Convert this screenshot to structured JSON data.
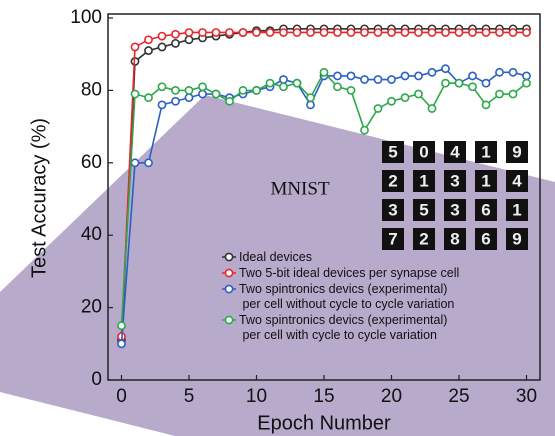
{
  "chart_data": {
    "type": "line",
    "xlabel": "Epoch Number",
    "ylabel": "Test Accuracy (%)",
    "annotation": "MNIST",
    "digits": [
      [
        "5",
        "0",
        "4",
        "1",
        "9"
      ],
      [
        "2",
        "1",
        "3",
        "1",
        "4"
      ],
      [
        "3",
        "5",
        "3",
        "6",
        "1"
      ],
      [
        "7",
        "2",
        "8",
        "6",
        "9"
      ]
    ],
    "x": [
      0,
      1,
      2,
      3,
      4,
      5,
      6,
      7,
      8,
      9,
      10,
      11,
      12,
      13,
      14,
      15,
      16,
      17,
      18,
      19,
      20,
      21,
      22,
      23,
      24,
      25,
      26,
      27,
      28,
      29,
      30
    ],
    "xlim": [
      -1,
      31
    ],
    "xticks": [
      0,
      5,
      10,
      15,
      20,
      25,
      30
    ],
    "ylim": [
      0,
      100
    ],
    "yticks": [
      0,
      20,
      40,
      60,
      80,
      100
    ],
    "series": [
      {
        "name": "Ideal devices",
        "color": "#333333",
        "values": [
          11,
          88,
          91,
          92,
          93,
          94,
          94.5,
          95,
          95.5,
          96,
          96.5,
          96.5,
          97,
          97,
          97,
          97,
          97,
          97,
          97,
          97,
          97,
          97,
          97,
          97,
          97,
          97,
          97,
          97,
          97,
          97,
          97
        ]
      },
      {
        "name": "Two 5-bit ideal devices per synapse cell",
        "color": "#e8262b",
        "values": [
          12,
          92,
          94,
          95,
          95.5,
          96,
          96,
          96,
          96,
          96,
          96,
          96,
          96,
          96,
          96,
          96,
          96,
          96,
          96,
          96,
          96,
          96,
          96,
          96,
          96,
          96,
          96,
          96,
          96,
          96,
          96
        ]
      },
      {
        "name": "Two spintronics devics (experimental)\n per cell without cycle to cycle variation",
        "color": "#2b5fc8",
        "values": [
          10,
          60,
          60,
          76,
          77,
          78,
          79,
          79,
          78,
          79,
          80,
          81,
          83,
          82,
          76,
          84,
          84,
          84,
          83,
          83,
          83,
          84,
          84,
          85,
          86,
          82,
          84,
          82,
          85,
          85,
          84
        ]
      },
      {
        "name": "Two spintronics devics (experimental)\n per cell with cycle to cycle variation",
        "color": "#2ca84a",
        "values": [
          15,
          79,
          78,
          81,
          80,
          80,
          81,
          79,
          77,
          80,
          80,
          82,
          81,
          82,
          78,
          85,
          81,
          80,
          69,
          75,
          77,
          78,
          79,
          75,
          82,
          82,
          81,
          76,
          79,
          79,
          82
        ]
      }
    ]
  }
}
